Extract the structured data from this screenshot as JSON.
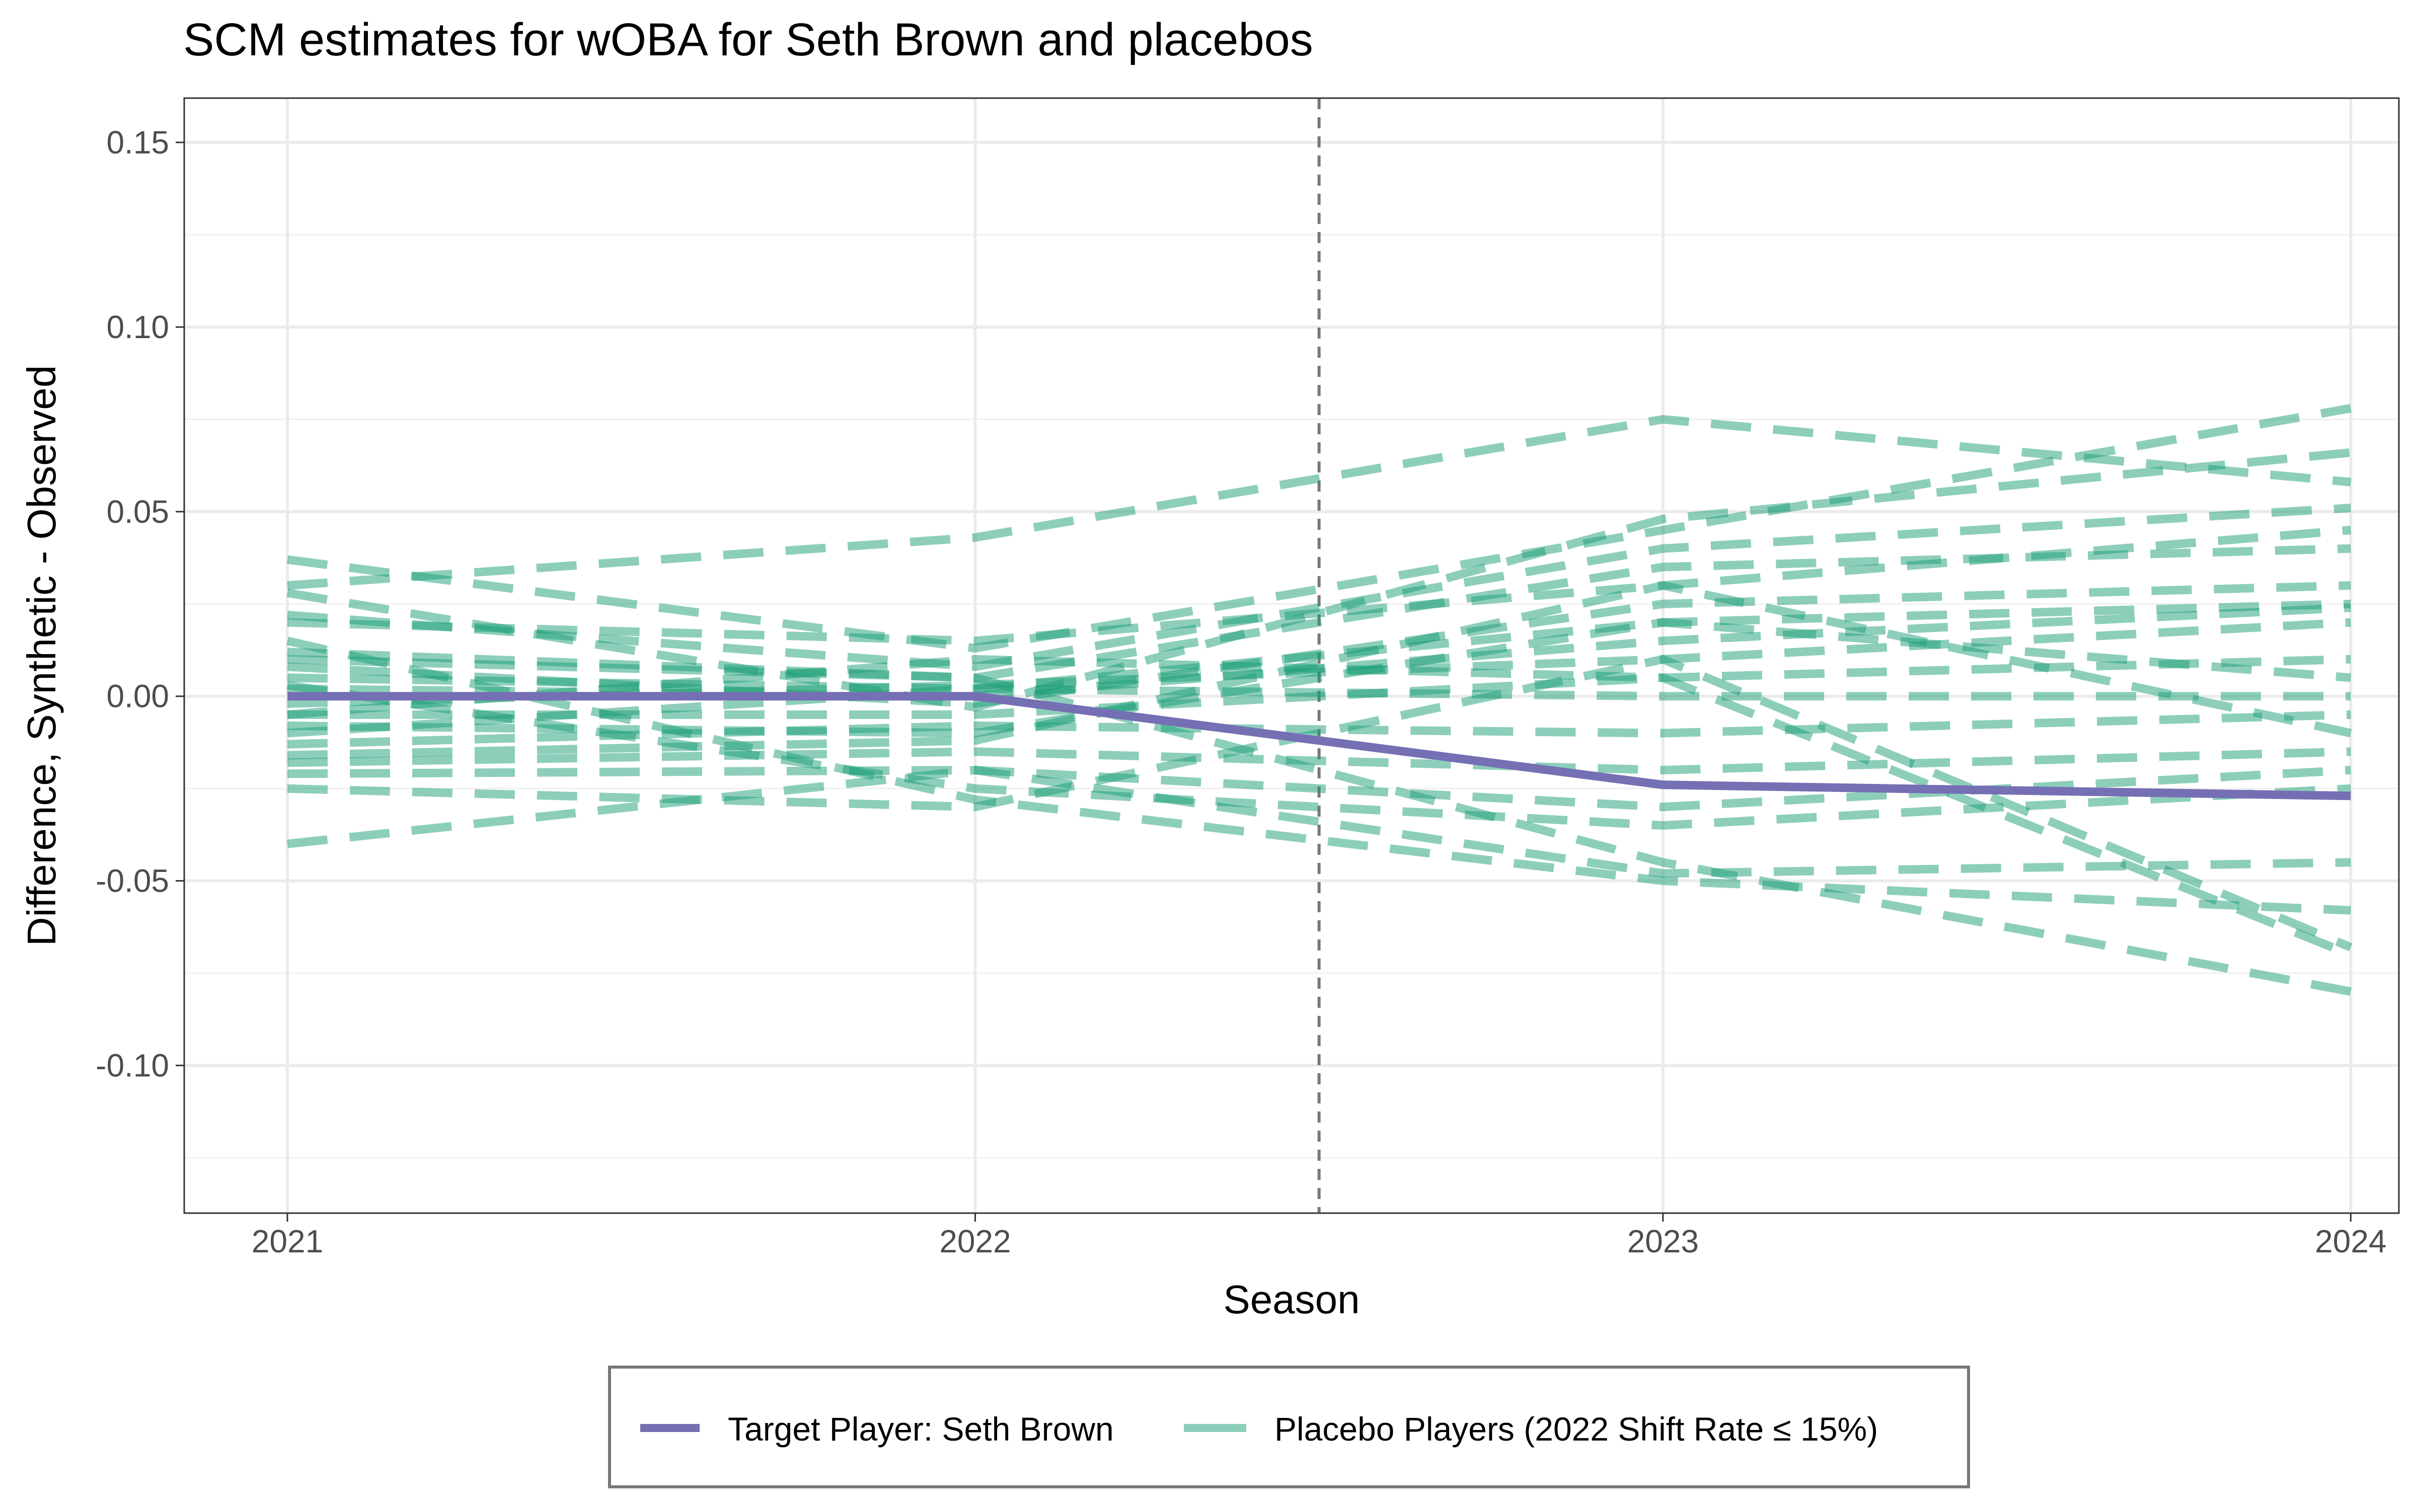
{
  "chart_data": {
    "type": "line",
    "title": "SCM estimates for wOBA for Seth Brown and placebos",
    "xlabel": "Season",
    "ylabel": "Difference, Synthetic - Observed",
    "xlim": [
      2020.85,
      2024.07
    ],
    "ylim": [
      -0.14,
      0.162
    ],
    "x_ticks": [
      2021,
      2022,
      2023,
      2024
    ],
    "x_tick_labels": [
      "2021",
      "2022",
      "2023",
      "2024"
    ],
    "y_ticks": [
      0.15,
      0.1,
      0.05,
      0.0,
      -0.05,
      -0.1
    ],
    "y_tick_labels": [
      "0.15",
      "0.10",
      "0.05",
      "0.00",
      "-0.05",
      "-0.10"
    ],
    "vline": 2022.5,
    "grid": true,
    "legend_position": "bottom",
    "x": [
      2021,
      2022,
      2023,
      2024
    ],
    "series": [
      {
        "name": "Target Player: Seth Brown",
        "values": [
          0.0,
          0.0,
          -0.024,
          -0.027
        ]
      },
      {
        "name": "Placebo Players (2022 Shift Rate ≤ 15%)",
        "values": [
          [
            0.03,
            0.043,
            0.075,
            0.058
          ],
          [
            0.037,
            0.013,
            0.045,
            0.078
          ],
          [
            0.028,
            -0.003,
            0.048,
            0.066
          ],
          [
            0.022,
            0.008,
            0.04,
            0.051
          ],
          [
            0.02,
            0.015,
            0.03,
            0.045
          ],
          [
            0.012,
            0.005,
            0.035,
            0.04
          ],
          [
            0.008,
            -0.002,
            0.025,
            0.03
          ],
          [
            0.005,
            0.002,
            0.02,
            0.025
          ],
          [
            0.002,
            0.0,
            0.015,
            0.024
          ],
          [
            -0.002,
            0.003,
            0.01,
            0.02
          ],
          [
            -0.005,
            -0.005,
            0.005,
            0.01
          ],
          [
            -0.008,
            -0.01,
            0.02,
            0.005
          ],
          [
            -0.01,
            0.002,
            0.0,
            0.0
          ],
          [
            -0.013,
            -0.008,
            -0.01,
            -0.005
          ],
          [
            -0.016,
            -0.012,
            0.03,
            -0.01
          ],
          [
            -0.018,
            -0.015,
            -0.02,
            -0.015
          ],
          [
            -0.021,
            -0.02,
            -0.03,
            -0.02
          ],
          [
            0.003,
            -0.025,
            -0.035,
            -0.025
          ],
          [
            -0.04,
            -0.02,
            -0.048,
            -0.045
          ],
          [
            0.015,
            -0.028,
            -0.05,
            -0.058
          ],
          [
            -0.025,
            -0.03,
            0.01,
            -0.068
          ],
          [
            0.01,
            0.005,
            -0.045,
            -0.08
          ],
          [
            -0.005,
            0.01,
            0.005,
            -0.07
          ]
        ]
      }
    ]
  }
}
